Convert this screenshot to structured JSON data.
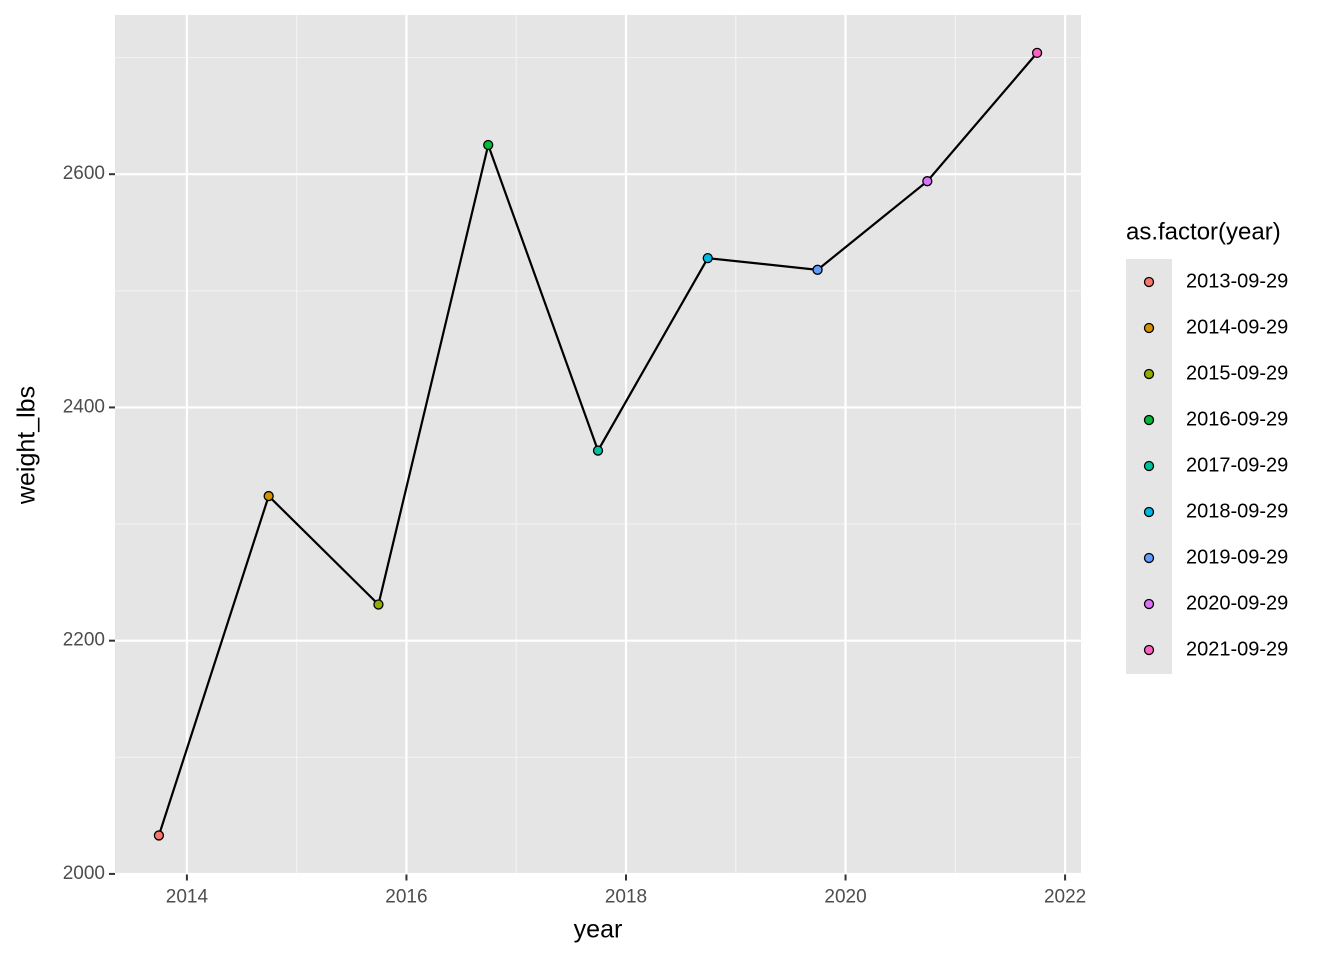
{
  "chart_data": {
    "type": "line",
    "x_label": "year",
    "y_label": "weight_lbs",
    "x": [
      2013.745,
      2014.745,
      2015.745,
      2016.745,
      2017.745,
      2018.745,
      2019.745,
      2020.745,
      2021.745
    ],
    "values": [
      2033,
      2324,
      2231,
      2625,
      2363,
      2528,
      2518,
      2594,
      2704
    ],
    "line_color": "#000000",
    "point_colors": [
      "#F8766D",
      "#D39200",
      "#93AA00",
      "#00BA38",
      "#00C19F",
      "#00B9E3",
      "#619CFF",
      "#DB72FB",
      "#FF61C3"
    ],
    "legend": {
      "title": "as.factor(year)",
      "labels": [
        "2013-09-29",
        "2014-09-29",
        "2015-09-29",
        "2016-09-29",
        "2017-09-29",
        "2018-09-29",
        "2019-09-29",
        "2020-09-29",
        "2021-09-29"
      ]
    },
    "xlim": [
      2013.345,
      2022.145
    ],
    "ylim": [
      1999.5,
      2736.5
    ],
    "xticks": [
      2014,
      2016,
      2018,
      2020,
      2022
    ],
    "yticks": [
      2000,
      2200,
      2400,
      2600
    ],
    "minor_xticks": [
      2015,
      2017,
      2019,
      2021
    ],
    "minor_yticks": [
      2100,
      2300,
      2500,
      2700
    ],
    "grid": true
  }
}
